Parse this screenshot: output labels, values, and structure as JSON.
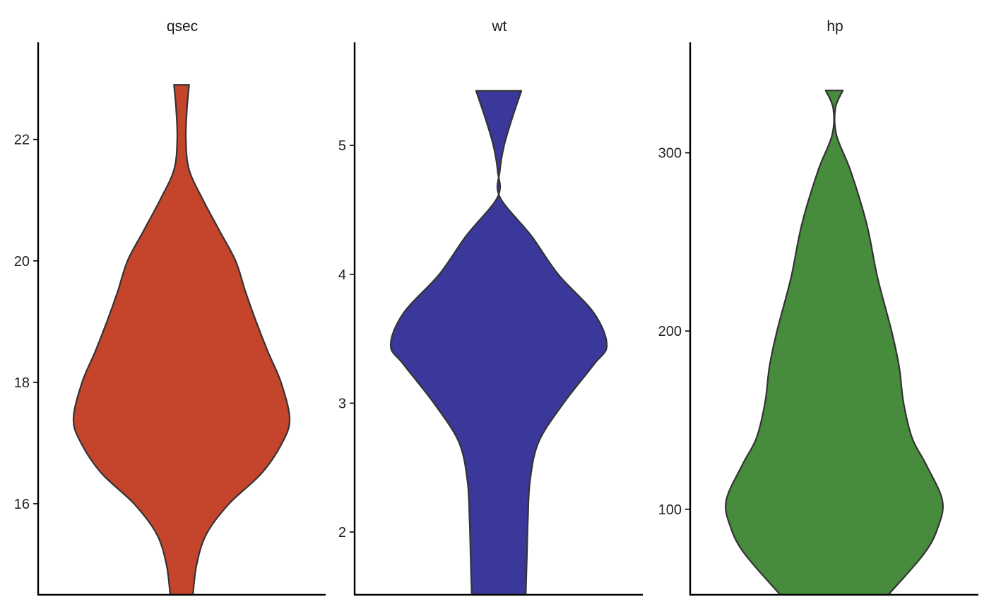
{
  "chart_data": [
    {
      "type": "violin",
      "panel": "qsec",
      "color": "#C4452B",
      "ylim": [
        14.5,
        23.6
      ],
      "yticks": [
        16,
        18,
        20,
        22
      ],
      "grid": false,
      "legend": "none",
      "density": [
        {
          "y": 14.5,
          "w": 0.105
        },
        {
          "y": 15.0,
          "w": 0.14
        },
        {
          "y": 15.5,
          "w": 0.23
        },
        {
          "y": 16.0,
          "w": 0.44
        },
        {
          "y": 16.5,
          "w": 0.74
        },
        {
          "y": 17.0,
          "w": 0.93
        },
        {
          "y": 17.4,
          "w": 1.0
        },
        {
          "y": 18.0,
          "w": 0.92
        },
        {
          "y": 18.5,
          "w": 0.8
        },
        {
          "y": 19.0,
          "w": 0.69
        },
        {
          "y": 19.5,
          "w": 0.59
        },
        {
          "y": 20.0,
          "w": 0.5
        },
        {
          "y": 20.5,
          "w": 0.35
        },
        {
          "y": 21.0,
          "w": 0.2
        },
        {
          "y": 21.5,
          "w": 0.07
        },
        {
          "y": 22.0,
          "w": 0.04
        },
        {
          "y": 22.5,
          "w": 0.05
        },
        {
          "y": 22.9,
          "w": 0.07
        }
      ]
    },
    {
      "type": "violin",
      "panel": "wt",
      "color": "#3A389A",
      "ylim": [
        1.513,
        5.8
      ],
      "yticks": [
        2,
        3,
        4,
        5
      ],
      "grid": false,
      "legend": "none",
      "density": [
        {
          "y": 1.513,
          "w": 0.25
        },
        {
          "y": 1.8,
          "w": 0.26
        },
        {
          "y": 2.1,
          "w": 0.27
        },
        {
          "y": 2.4,
          "w": 0.29
        },
        {
          "y": 2.7,
          "w": 0.37
        },
        {
          "y": 3.0,
          "w": 0.6
        },
        {
          "y": 3.3,
          "w": 0.88
        },
        {
          "y": 3.45,
          "w": 1.0
        },
        {
          "y": 3.7,
          "w": 0.88
        },
        {
          "y": 4.0,
          "w": 0.55
        },
        {
          "y": 4.3,
          "w": 0.3
        },
        {
          "y": 4.6,
          "w": 0.01
        },
        {
          "y": 4.8,
          "w": 0.01
        },
        {
          "y": 5.0,
          "w": 0.05
        },
        {
          "y": 5.2,
          "w": 0.12
        },
        {
          "y": 5.424,
          "w": 0.21
        }
      ]
    },
    {
      "type": "violin",
      "panel": "hp",
      "color": "#478B3C",
      "ylim": [
        52,
        362
      ],
      "yticks": [
        100,
        200,
        300
      ],
      "grid": false,
      "legend": "none",
      "density": [
        {
          "y": 52,
          "w": 0.5
        },
        {
          "y": 75,
          "w": 0.83
        },
        {
          "y": 90,
          "w": 0.96
        },
        {
          "y": 105,
          "w": 1.0
        },
        {
          "y": 125,
          "w": 0.85
        },
        {
          "y": 140,
          "w": 0.72
        },
        {
          "y": 160,
          "w": 0.64
        },
        {
          "y": 180,
          "w": 0.6
        },
        {
          "y": 200,
          "w": 0.53
        },
        {
          "y": 230,
          "w": 0.4
        },
        {
          "y": 260,
          "w": 0.3
        },
        {
          "y": 290,
          "w": 0.15
        },
        {
          "y": 310,
          "w": 0.02
        },
        {
          "y": 325,
          "w": 0.01
        },
        {
          "y": 335,
          "w": 0.08
        }
      ]
    }
  ]
}
